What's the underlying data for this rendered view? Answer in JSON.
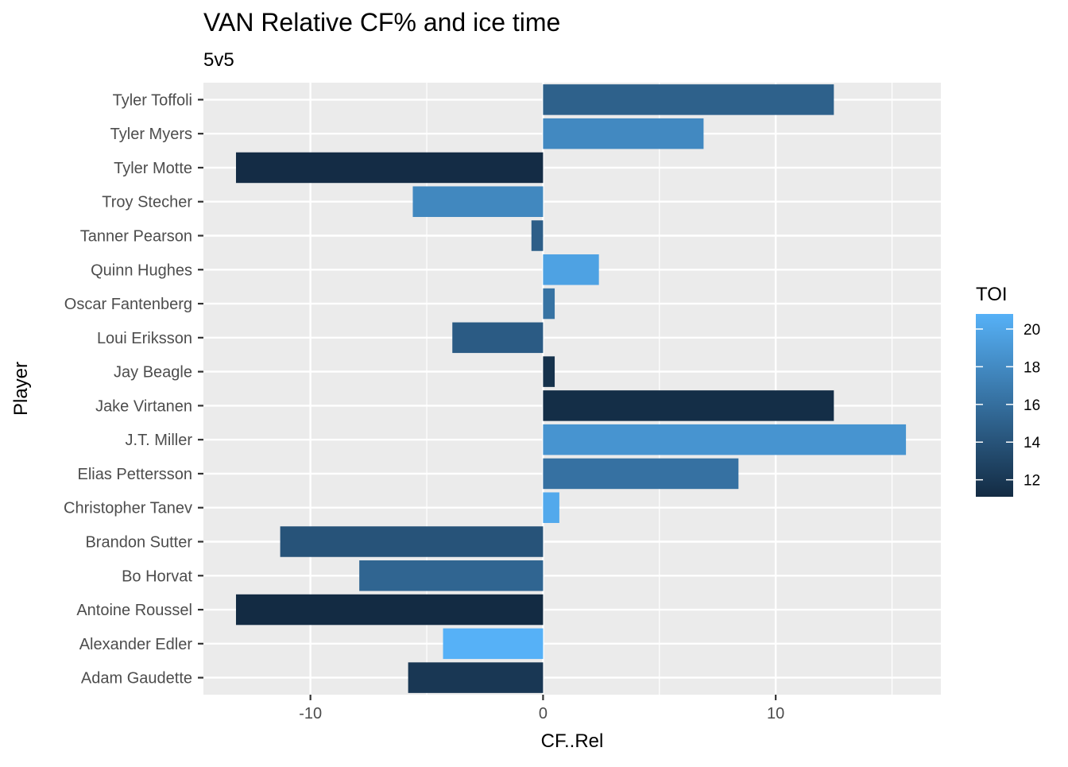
{
  "chart_data": {
    "type": "bar",
    "orientation": "horizontal",
    "title": "VAN Relative CF% and ice time",
    "subtitle": "5v5",
    "xlabel": "CF..Rel",
    "ylabel": "Player",
    "xlim": [
      -14.6,
      17.1
    ],
    "x_ticks": [
      -10,
      0,
      10
    ],
    "x_tick_labels": [
      "-10",
      "0",
      "10"
    ],
    "grid": true,
    "legend": {
      "title": "TOI",
      "placement": "right",
      "min": 11.1,
      "max": 20.8,
      "ticks": [
        12,
        14,
        16,
        18,
        20
      ],
      "tick_labels": [
        "12",
        "14",
        "16",
        "18",
        "20"
      ],
      "color_low": "#132B43",
      "color_high": "#56B1F7"
    },
    "categories": [
      "Tyler Toffoli",
      "Tyler Myers",
      "Tyler Motte",
      "Troy Stecher",
      "Tanner Pearson",
      "Quinn Hughes",
      "Oscar Fantenberg",
      "Loui Eriksson",
      "Jay Beagle",
      "Jake Virtanen",
      "J.T. Miller",
      "Elias Pettersson",
      "Christopher Tanev",
      "Brandon Sutter",
      "Bo Horvat",
      "Antoine Roussel",
      "Alexander Edler",
      "Adam Gaudette"
    ],
    "values": [
      12.5,
      6.9,
      -13.2,
      -5.6,
      -0.5,
      2.4,
      0.5,
      -3.9,
      0.5,
      12.5,
      15.6,
      8.4,
      0.7,
      -11.3,
      -7.9,
      -13.2,
      -4.3,
      -5.8
    ],
    "toi": [
      15.0,
      17.9,
      11.2,
      17.8,
      14.8,
      19.7,
      16.3,
      14.6,
      11.6,
      11.3,
      18.7,
      16.2,
      20.2,
      14.0,
      15.3,
      11.1,
      20.8,
      12.0
    ]
  }
}
